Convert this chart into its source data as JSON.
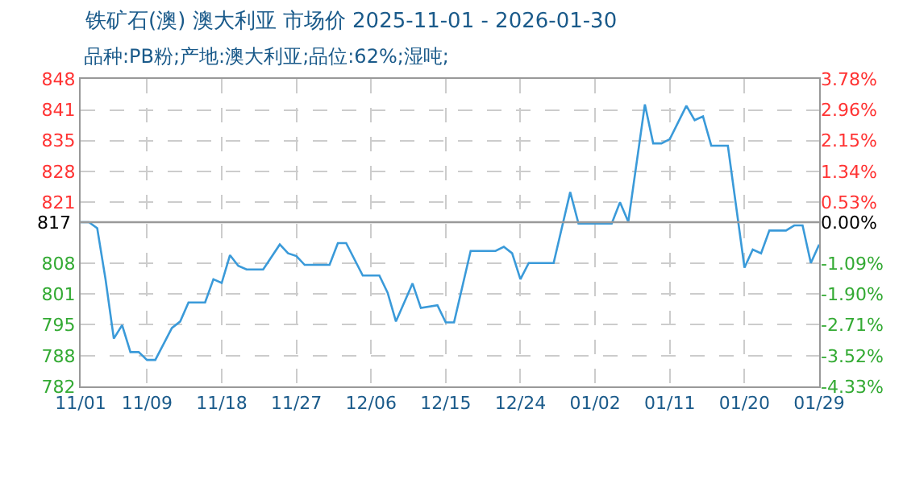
{
  "chart_data": {
    "type": "line",
    "title": "铁矿石(澳) 澳大利亚 市场价 2025-11-01 - 2026-01-30",
    "subtitle": "品种:PB粉;产地:澳大利亚;品位:62%;湿吨;",
    "x": [
      "2025-11-01",
      "2025-11-02",
      "2025-11-03",
      "2025-11-04",
      "2025-11-05",
      "2025-11-06",
      "2025-11-07",
      "2025-11-08",
      "2025-11-09",
      "2025-11-10",
      "2025-11-12",
      "2025-11-13",
      "2025-11-14",
      "2025-11-16",
      "2025-11-17",
      "2025-11-18",
      "2025-11-19",
      "2025-11-20",
      "2025-11-21",
      "2025-11-23",
      "2025-11-25",
      "2025-11-26",
      "2025-11-27",
      "2025-11-28",
      "2025-12-01",
      "2025-12-02",
      "2025-12-03",
      "2025-12-05",
      "2025-12-07",
      "2025-12-08",
      "2025-12-09",
      "2025-12-11",
      "2025-12-12",
      "2025-12-14",
      "2025-12-15",
      "2025-12-16",
      "2025-12-18",
      "2025-12-21",
      "2025-12-22",
      "2025-12-23",
      "2025-12-24",
      "2025-12-25",
      "2025-12-28",
      "2025-12-30",
      "2025-12-31",
      "2026-01-04",
      "2026-01-05",
      "2026-01-06",
      "2026-01-08",
      "2026-01-09",
      "2026-01-10",
      "2026-01-11",
      "2026-01-13",
      "2026-01-14",
      "2026-01-15",
      "2026-01-16",
      "2026-01-18",
      "2026-01-20",
      "2026-01-21",
      "2026-01-22",
      "2026-01-23",
      "2026-01-25",
      "2026-01-26",
      "2026-01-27",
      "2026-01-28",
      "2026-01-29"
    ],
    "series": [
      {
        "color": "#3a9ad9",
        "values": [
          817,
          817,
          815.7,
          804.7,
          791.9,
          794.8,
          789,
          789,
          787.3,
          787.3,
          794.2,
          795.6,
          799.7,
          799.7,
          804.7,
          803.9,
          809.9,
          807.6,
          806.8,
          806.8,
          812.2,
          810.3,
          809.7,
          807.8,
          807.8,
          812.5,
          812.5,
          805.5,
          805.5,
          801.8,
          795.6,
          803.8,
          798.5,
          799.1,
          795.4,
          795.4,
          810.8,
          810.8,
          811.7,
          810.3,
          804.7,
          808.2,
          808.2,
          823.5,
          816.7,
          816.7,
          821.3,
          817.1,
          842.4,
          834,
          834,
          834.9,
          842.1,
          839,
          839.8,
          833.5,
          833.5,
          807.2,
          811.1,
          810.3,
          815.2,
          815.2,
          816.3,
          816.3,
          808.2,
          812.2
        ]
      }
    ],
    "xlim": [
      "2025-11-01",
      "2026-01-29"
    ],
    "xticks": [
      {
        "value": "2025-11-01",
        "label": "11/01"
      },
      {
        "value": "2025-11-09",
        "label": "11/09"
      },
      {
        "value": "2025-11-18",
        "label": "11/18"
      },
      {
        "value": "2025-11-27",
        "label": "11/27"
      },
      {
        "value": "2025-12-06",
        "label": "12/06"
      },
      {
        "value": "2025-12-15",
        "label": "12/15"
      },
      {
        "value": "2025-12-24",
        "label": "12/24"
      },
      {
        "value": "2026-01-02",
        "label": "01/02"
      },
      {
        "value": "2026-01-11",
        "label": "01/11"
      },
      {
        "value": "2026-01-20",
        "label": "01/20"
      },
      {
        "value": "2026-01-29",
        "label": "01/29"
      }
    ],
    "ylim": [
      781.6,
      847.9
    ],
    "yticks": [
      {
        "value": 847.9,
        "label": "848"
      },
      {
        "value": 841.2,
        "label": "841"
      },
      {
        "value": 834.6,
        "label": "835"
      },
      {
        "value": 827.9,
        "label": "828"
      },
      {
        "value": 821.3,
        "label": "821"
      },
      {
        "value": 808.1,
        "label": "808"
      },
      {
        "value": 801.5,
        "label": "801"
      },
      {
        "value": 794.9,
        "label": "795"
      },
      {
        "value": 788.2,
        "label": "788"
      },
      {
        "value": 781.6,
        "label": "782"
      }
    ],
    "y2lim": [
      -4.33,
      3.78
    ],
    "y2ticks": [
      {
        "value": 3.78,
        "label": "3.78%"
      },
      {
        "value": 2.96,
        "label": "2.96%"
      },
      {
        "value": 2.15,
        "label": "2.15%"
      },
      {
        "value": 1.34,
        "label": "1.34%"
      },
      {
        "value": 0.53,
        "label": "0.53%"
      },
      {
        "value": 0,
        "label": "0.00%"
      },
      {
        "value": -1.09,
        "label": "-1.09%"
      },
      {
        "value": -1.9,
        "label": "-1.90%"
      },
      {
        "value": -2.71,
        "label": "-2.71%"
      },
      {
        "value": -3.52,
        "label": "-3.52%"
      },
      {
        "value": -4.33,
        "label": "-4.33%"
      }
    ],
    "ref_lines": [
      {
        "axis": "y",
        "value": 817,
        "label": "817",
        "color": "#999999"
      }
    ],
    "grid": true,
    "marker": "none",
    "line_style": "solid"
  }
}
